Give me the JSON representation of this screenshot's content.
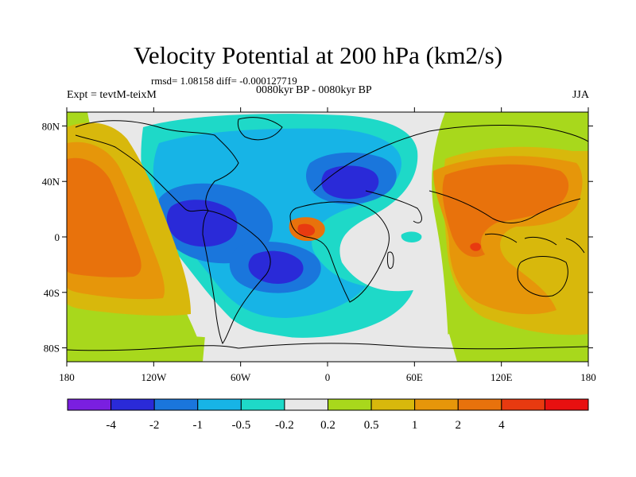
{
  "title": "Velocity Potential at 200 hPa (km2/s)",
  "stats": "rmsd= 1.08158 diff= -0.000127719",
  "left_label": "Expt = tevtM-teixM",
  "center_label": "0080kyr BP - 0080kyr BP",
  "right_label": "JJA",
  "map": {
    "type": "filled-contour-map",
    "x_ticks": [
      {
        "lon": -180,
        "label": "180"
      },
      {
        "lon": -120,
        "label": "120W"
      },
      {
        "lon": -60,
        "label": "60W"
      },
      {
        "lon": 0,
        "label": "0"
      },
      {
        "lon": 60,
        "label": "60E"
      },
      {
        "lon": 120,
        "label": "120E"
      },
      {
        "lon": 180,
        "label": "180"
      }
    ],
    "y_ticks": [
      {
        "lat": 80,
        "label": "80N"
      },
      {
        "lat": 40,
        "label": "40N"
      },
      {
        "lat": 0,
        "label": "0"
      },
      {
        "lat": -40,
        "label": "40S"
      },
      {
        "lat": -80,
        "label": "80S"
      }
    ],
    "colors": {
      "m4": "#7a1fe0",
      "m2": "#2a2ad8",
      "m1": "#1a76dc",
      "m05": "#17b4e6",
      "m02": "#1ed9c8",
      "neutral": "#e8e8e8",
      "p02": "#a8d81c",
      "p05": "#d8b80c",
      "p1": "#e6960a",
      "p2": "#e8720c",
      "p4": "#e83a10",
      "p5": "#e81010"
    }
  },
  "colorbar": {
    "levels": [
      "-4",
      "-2",
      "-1",
      "-0.5",
      "-0.2",
      "0.2",
      "0.5",
      "1",
      "2",
      "4"
    ],
    "colors": [
      "#7a1fe0",
      "#2a2ad8",
      "#1a76dc",
      "#17b4e6",
      "#1ed9c8",
      "#e8e8e8",
      "#a8d81c",
      "#d8b80c",
      "#e6960a",
      "#e8720c",
      "#e83a10",
      "#e81010"
    ]
  }
}
